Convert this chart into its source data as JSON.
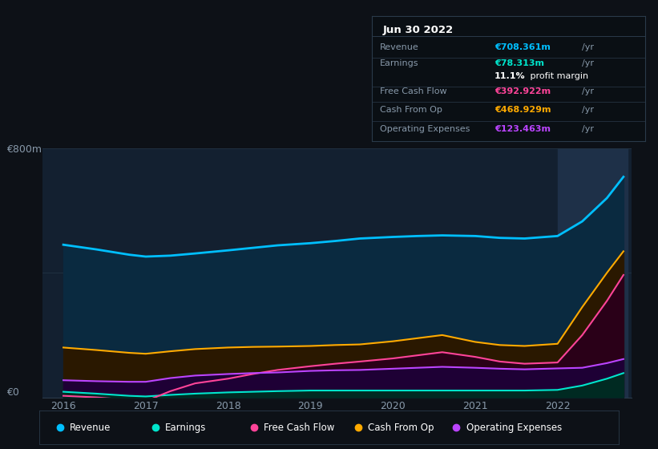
{
  "background_color": "#0d1117",
  "chart_bg_color": "#132030",
  "title": "Jun 30 2022",
  "ylabel_top": "€800m",
  "ylabel_bottom": "€0",
  "x_labels": [
    "2016",
    "2017",
    "2018",
    "2019",
    "2020",
    "2021",
    "2022"
  ],
  "years": [
    2016.0,
    2016.4,
    2016.8,
    2017.0,
    2017.3,
    2017.6,
    2018.0,
    2018.3,
    2018.6,
    2019.0,
    2019.3,
    2019.6,
    2020.0,
    2020.3,
    2020.6,
    2021.0,
    2021.3,
    2021.6,
    2022.0,
    2022.3,
    2022.6,
    2022.8
  ],
  "revenue": [
    490,
    475,
    458,
    452,
    455,
    462,
    472,
    480,
    488,
    495,
    502,
    510,
    515,
    518,
    520,
    518,
    512,
    510,
    518,
    565,
    640,
    708
  ],
  "earnings": [
    18,
    12,
    5,
    3,
    8,
    12,
    16,
    18,
    20,
    22,
    22,
    22,
    22,
    22,
    22,
    22,
    22,
    22,
    24,
    38,
    60,
    78
  ],
  "free_cash_flow": [
    5,
    0,
    -8,
    -12,
    20,
    45,
    60,
    75,
    88,
    100,
    108,
    115,
    125,
    135,
    145,
    130,
    115,
    108,
    112,
    200,
    310,
    393
  ],
  "cash_from_op": [
    160,
    152,
    143,
    140,
    148,
    155,
    160,
    162,
    163,
    165,
    168,
    170,
    180,
    190,
    200,
    178,
    168,
    165,
    172,
    290,
    400,
    469
  ],
  "operating_exp": [
    55,
    52,
    50,
    50,
    62,
    70,
    75,
    78,
    80,
    85,
    87,
    88,
    92,
    95,
    98,
    95,
    92,
    90,
    93,
    95,
    110,
    123
  ],
  "revenue_color": "#00bfff",
  "earnings_color": "#00e5cc",
  "free_cash_flow_color": "#ff4499",
  "cash_from_op_color": "#ffaa00",
  "operating_exp_color": "#bb44ff",
  "revenue_fill": "#0a2a40",
  "earnings_fill": "#002a22",
  "free_cash_flow_fill": "#2a0018",
  "cash_from_op_fill": "#2a1800",
  "operating_exp_fill": "#1e0035",
  "highlight_x_start": 2022.0,
  "highlight_x_end": 2022.85,
  "highlight_color": "#1e3048",
  "info_rows": [
    {
      "label": "Revenue",
      "value": "€708.361m",
      "suffix": "/yr",
      "color": "#00bfff"
    },
    {
      "label": "Earnings",
      "value": "€78.313m",
      "suffix": "/yr",
      "color": "#00e5cc"
    },
    {
      "label": "",
      "value": "11.1%",
      "suffix": " profit margin",
      "color": "#ffffff"
    },
    {
      "label": "Free Cash Flow",
      "value": "€392.922m",
      "suffix": "/yr",
      "color": "#ff4499"
    },
    {
      "label": "Cash From Op",
      "value": "€468.929m",
      "suffix": "/yr",
      "color": "#ffaa00"
    },
    {
      "label": "Operating Expenses",
      "value": "€123.463m",
      "suffix": "/yr",
      "color": "#bb44ff"
    }
  ],
  "legend_items": [
    {
      "label": "Revenue",
      "color": "#00bfff"
    },
    {
      "label": "Earnings",
      "color": "#00e5cc"
    },
    {
      "label": "Free Cash Flow",
      "color": "#ff4499"
    },
    {
      "label": "Cash From Op",
      "color": "#ffaa00"
    },
    {
      "label": "Operating Expenses",
      "color": "#bb44ff"
    }
  ],
  "ylim": [
    0,
    800
  ],
  "xlim": [
    2015.75,
    2022.9
  ]
}
